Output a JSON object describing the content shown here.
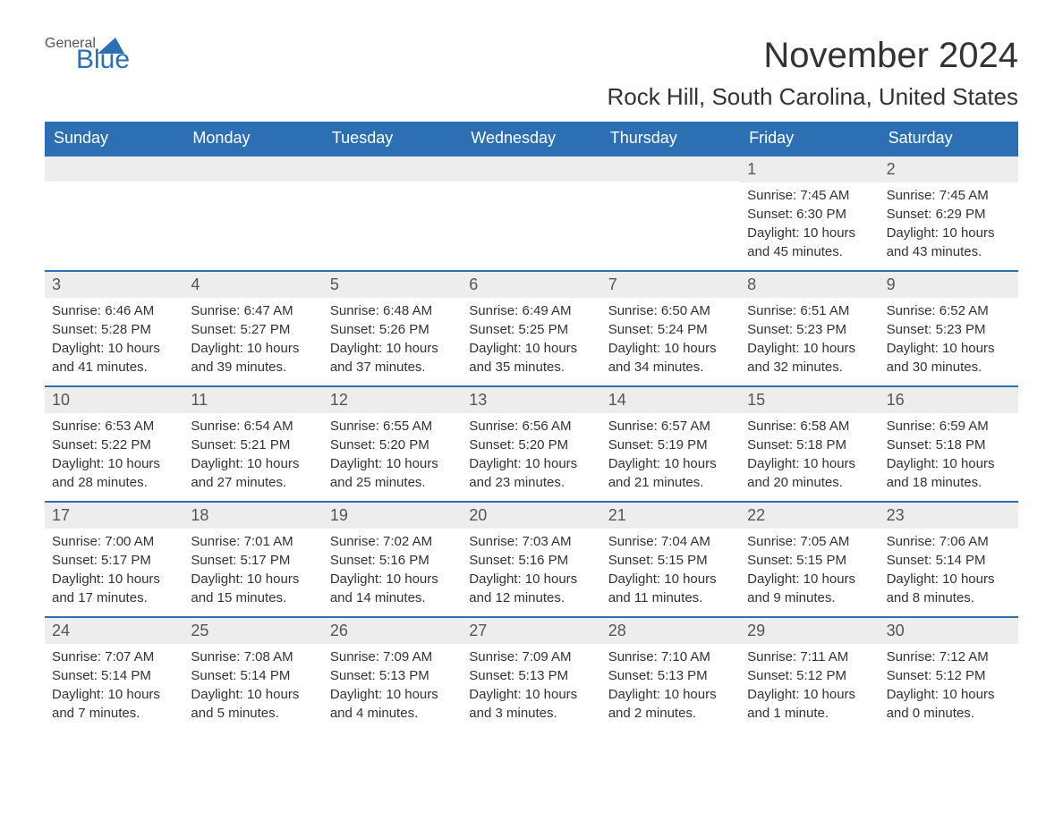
{
  "logo": {
    "text1": "General",
    "text2": "Blue"
  },
  "title": {
    "month_year": "November 2024",
    "location": "Rock Hill, South Carolina, United States"
  },
  "colors": {
    "header_bg": "#2c6fb3",
    "header_text": "#ffffff",
    "daynum_bg": "#ededed",
    "body_text": "#333333",
    "logo_gray": "#555555",
    "logo_blue": "#2c6fb3",
    "week_border": "#2c6fb3"
  },
  "fonts": {
    "title_size": 40,
    "location_size": 26,
    "header_size": 18,
    "body_size": 15
  },
  "weekdays": [
    "Sunday",
    "Monday",
    "Tuesday",
    "Wednesday",
    "Thursday",
    "Friday",
    "Saturday"
  ],
  "weeks": [
    [
      {
        "day": "",
        "sunrise": "",
        "sunset": "",
        "daylight": ""
      },
      {
        "day": "",
        "sunrise": "",
        "sunset": "",
        "daylight": ""
      },
      {
        "day": "",
        "sunrise": "",
        "sunset": "",
        "daylight": ""
      },
      {
        "day": "",
        "sunrise": "",
        "sunset": "",
        "daylight": ""
      },
      {
        "day": "",
        "sunrise": "",
        "sunset": "",
        "daylight": ""
      },
      {
        "day": "1",
        "sunrise": "Sunrise: 7:45 AM",
        "sunset": "Sunset: 6:30 PM",
        "daylight": "Daylight: 10 hours and 45 minutes."
      },
      {
        "day": "2",
        "sunrise": "Sunrise: 7:45 AM",
        "sunset": "Sunset: 6:29 PM",
        "daylight": "Daylight: 10 hours and 43 minutes."
      }
    ],
    [
      {
        "day": "3",
        "sunrise": "Sunrise: 6:46 AM",
        "sunset": "Sunset: 5:28 PM",
        "daylight": "Daylight: 10 hours and 41 minutes."
      },
      {
        "day": "4",
        "sunrise": "Sunrise: 6:47 AM",
        "sunset": "Sunset: 5:27 PM",
        "daylight": "Daylight: 10 hours and 39 minutes."
      },
      {
        "day": "5",
        "sunrise": "Sunrise: 6:48 AM",
        "sunset": "Sunset: 5:26 PM",
        "daylight": "Daylight: 10 hours and 37 minutes."
      },
      {
        "day": "6",
        "sunrise": "Sunrise: 6:49 AM",
        "sunset": "Sunset: 5:25 PM",
        "daylight": "Daylight: 10 hours and 35 minutes."
      },
      {
        "day": "7",
        "sunrise": "Sunrise: 6:50 AM",
        "sunset": "Sunset: 5:24 PM",
        "daylight": "Daylight: 10 hours and 34 minutes."
      },
      {
        "day": "8",
        "sunrise": "Sunrise: 6:51 AM",
        "sunset": "Sunset: 5:23 PM",
        "daylight": "Daylight: 10 hours and 32 minutes."
      },
      {
        "day": "9",
        "sunrise": "Sunrise: 6:52 AM",
        "sunset": "Sunset: 5:23 PM",
        "daylight": "Daylight: 10 hours and 30 minutes."
      }
    ],
    [
      {
        "day": "10",
        "sunrise": "Sunrise: 6:53 AM",
        "sunset": "Sunset: 5:22 PM",
        "daylight": "Daylight: 10 hours and 28 minutes."
      },
      {
        "day": "11",
        "sunrise": "Sunrise: 6:54 AM",
        "sunset": "Sunset: 5:21 PM",
        "daylight": "Daylight: 10 hours and 27 minutes."
      },
      {
        "day": "12",
        "sunrise": "Sunrise: 6:55 AM",
        "sunset": "Sunset: 5:20 PM",
        "daylight": "Daylight: 10 hours and 25 minutes."
      },
      {
        "day": "13",
        "sunrise": "Sunrise: 6:56 AM",
        "sunset": "Sunset: 5:20 PM",
        "daylight": "Daylight: 10 hours and 23 minutes."
      },
      {
        "day": "14",
        "sunrise": "Sunrise: 6:57 AM",
        "sunset": "Sunset: 5:19 PM",
        "daylight": "Daylight: 10 hours and 21 minutes."
      },
      {
        "day": "15",
        "sunrise": "Sunrise: 6:58 AM",
        "sunset": "Sunset: 5:18 PM",
        "daylight": "Daylight: 10 hours and 20 minutes."
      },
      {
        "day": "16",
        "sunrise": "Sunrise: 6:59 AM",
        "sunset": "Sunset: 5:18 PM",
        "daylight": "Daylight: 10 hours and 18 minutes."
      }
    ],
    [
      {
        "day": "17",
        "sunrise": "Sunrise: 7:00 AM",
        "sunset": "Sunset: 5:17 PM",
        "daylight": "Daylight: 10 hours and 17 minutes."
      },
      {
        "day": "18",
        "sunrise": "Sunrise: 7:01 AM",
        "sunset": "Sunset: 5:17 PM",
        "daylight": "Daylight: 10 hours and 15 minutes."
      },
      {
        "day": "19",
        "sunrise": "Sunrise: 7:02 AM",
        "sunset": "Sunset: 5:16 PM",
        "daylight": "Daylight: 10 hours and 14 minutes."
      },
      {
        "day": "20",
        "sunrise": "Sunrise: 7:03 AM",
        "sunset": "Sunset: 5:16 PM",
        "daylight": "Daylight: 10 hours and 12 minutes."
      },
      {
        "day": "21",
        "sunrise": "Sunrise: 7:04 AM",
        "sunset": "Sunset: 5:15 PM",
        "daylight": "Daylight: 10 hours and 11 minutes."
      },
      {
        "day": "22",
        "sunrise": "Sunrise: 7:05 AM",
        "sunset": "Sunset: 5:15 PM",
        "daylight": "Daylight: 10 hours and 9 minutes."
      },
      {
        "day": "23",
        "sunrise": "Sunrise: 7:06 AM",
        "sunset": "Sunset: 5:14 PM",
        "daylight": "Daylight: 10 hours and 8 minutes."
      }
    ],
    [
      {
        "day": "24",
        "sunrise": "Sunrise: 7:07 AM",
        "sunset": "Sunset: 5:14 PM",
        "daylight": "Daylight: 10 hours and 7 minutes."
      },
      {
        "day": "25",
        "sunrise": "Sunrise: 7:08 AM",
        "sunset": "Sunset: 5:14 PM",
        "daylight": "Daylight: 10 hours and 5 minutes."
      },
      {
        "day": "26",
        "sunrise": "Sunrise: 7:09 AM",
        "sunset": "Sunset: 5:13 PM",
        "daylight": "Daylight: 10 hours and 4 minutes."
      },
      {
        "day": "27",
        "sunrise": "Sunrise: 7:09 AM",
        "sunset": "Sunset: 5:13 PM",
        "daylight": "Daylight: 10 hours and 3 minutes."
      },
      {
        "day": "28",
        "sunrise": "Sunrise: 7:10 AM",
        "sunset": "Sunset: 5:13 PM",
        "daylight": "Daylight: 10 hours and 2 minutes."
      },
      {
        "day": "29",
        "sunrise": "Sunrise: 7:11 AM",
        "sunset": "Sunset: 5:12 PM",
        "daylight": "Daylight: 10 hours and 1 minute."
      },
      {
        "day": "30",
        "sunrise": "Sunrise: 7:12 AM",
        "sunset": "Sunset: 5:12 PM",
        "daylight": "Daylight: 10 hours and 0 minutes."
      }
    ]
  ]
}
